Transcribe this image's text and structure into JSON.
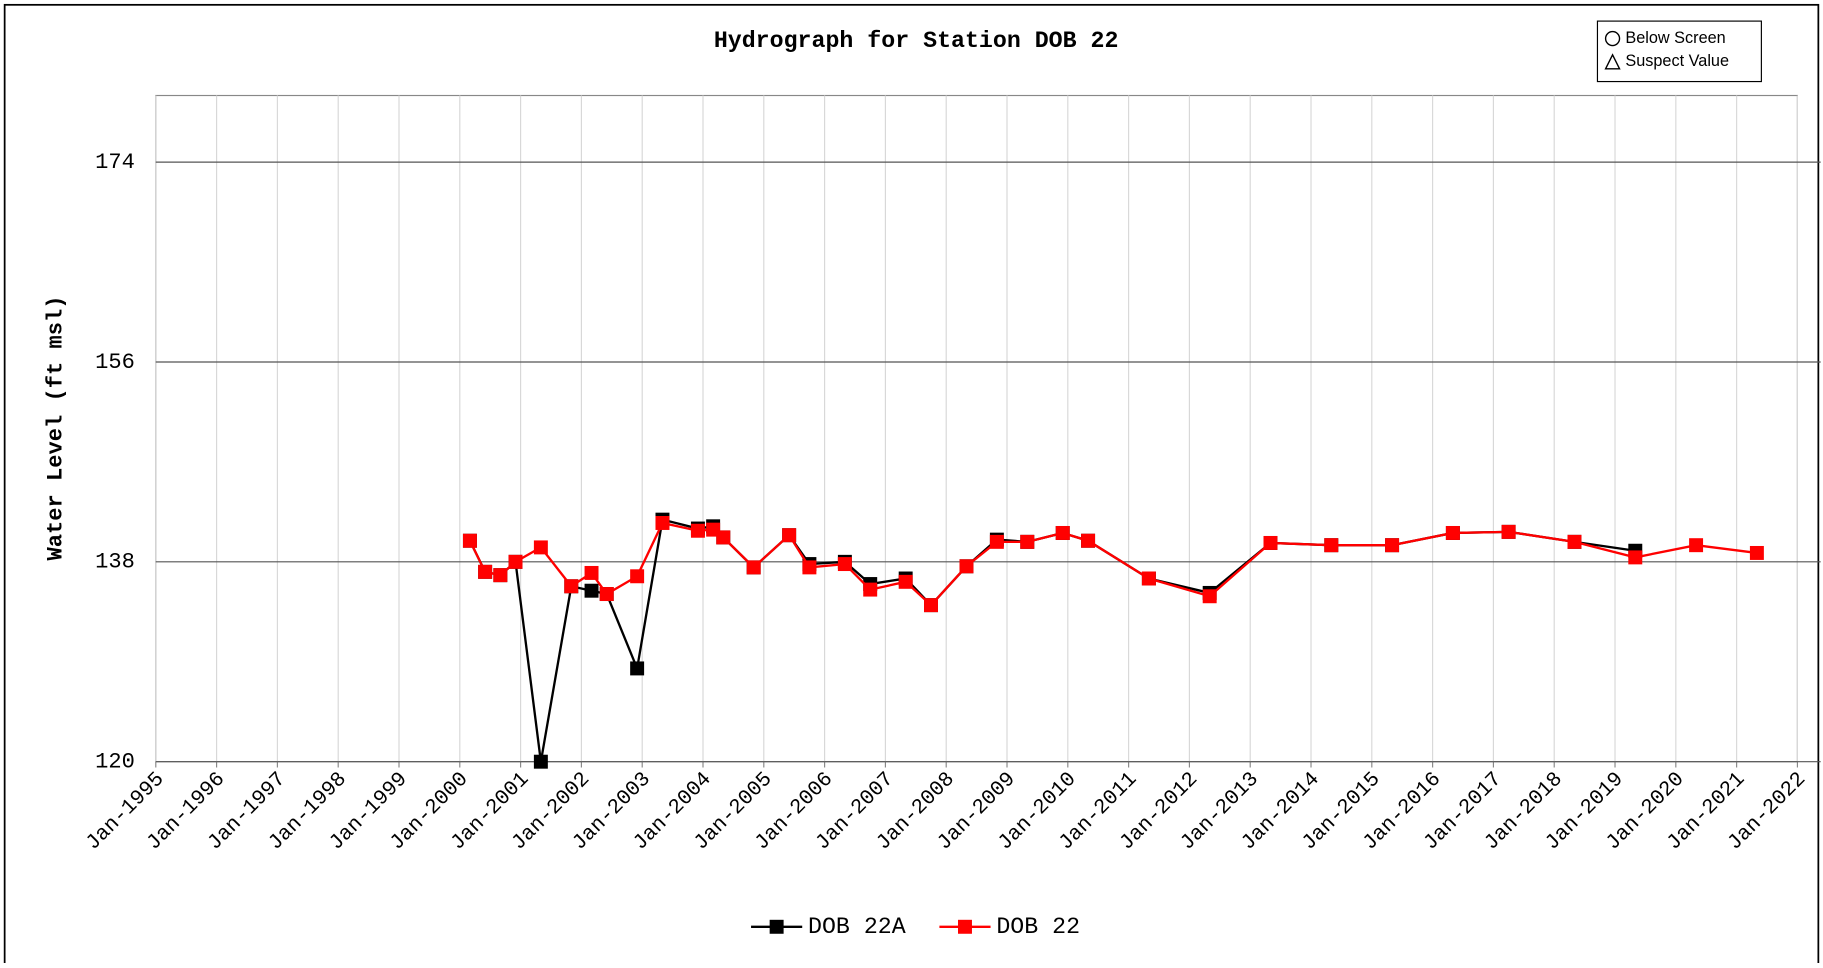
{
  "chart_data": {
    "type": "line",
    "title": "Hydrograph for Station DOB 22",
    "y_label": "Water Level (ft msl)",
    "annotations": [
      "Below Screen",
      "Suspect Value"
    ],
    "xlim": [
      "1995-01",
      "2022-01"
    ],
    "xticks": [
      {
        "value": "1995-01",
        "label": "Jan-1995"
      },
      {
        "value": "1996-01",
        "label": "Jan-1996"
      },
      {
        "value": "1997-01",
        "label": "Jan-1997"
      },
      {
        "value": "1998-01",
        "label": "Jan-1998"
      },
      {
        "value": "1999-01",
        "label": "Jan-1999"
      },
      {
        "value": "2000-01",
        "label": "Jan-2000"
      },
      {
        "value": "2001-01",
        "label": "Jan-2001"
      },
      {
        "value": "2002-01",
        "label": "Jan-2002"
      },
      {
        "value": "2003-01",
        "label": "Jan-2003"
      },
      {
        "value": "2004-01",
        "label": "Jan-2004"
      },
      {
        "value": "2005-01",
        "label": "Jan-2005"
      },
      {
        "value": "2006-01",
        "label": "Jan-2006"
      },
      {
        "value": "2007-01",
        "label": "Jan-2007"
      },
      {
        "value": "2008-01",
        "label": "Jan-2008"
      },
      {
        "value": "2009-01",
        "label": "Jan-2009"
      },
      {
        "value": "2010-01",
        "label": "Jan-2010"
      },
      {
        "value": "2011-01",
        "label": "Jan-2011"
      },
      {
        "value": "2012-01",
        "label": "Jan-2012"
      },
      {
        "value": "2013-01",
        "label": "Jan-2013"
      },
      {
        "value": "2014-01",
        "label": "Jan-2014"
      },
      {
        "value": "2015-01",
        "label": "Jan-2015"
      },
      {
        "value": "2016-01",
        "label": "Jan-2016"
      },
      {
        "value": "2017-01",
        "label": "Jan-2017"
      },
      {
        "value": "2018-01",
        "label": "Jan-2018"
      },
      {
        "value": "2019-01",
        "label": "Jan-2019"
      },
      {
        "value": "2020-01",
        "label": "Jan-2020"
      },
      {
        "value": "2021-01",
        "label": "Jan-2021"
      },
      {
        "value": "2022-01",
        "label": "Jan-2022"
      }
    ],
    "ylim": [
      120,
      180
    ],
    "yticks": [
      120,
      138,
      156,
      174
    ],
    "grid": true,
    "series": [
      {
        "name": "DOB 22A",
        "color": "#000000",
        "x": [
          "2000-03",
          "2000-06",
          "2000-09",
          "2000-12",
          "2001-05",
          "2001-11",
          "2002-03",
          "2002-06",
          "2002-12",
          "2003-05",
          "2003-12",
          "2004-03",
          "2004-05",
          "2004-11",
          "2005-06",
          "2005-10",
          "2006-05",
          "2006-10",
          "2007-05",
          "2007-10",
          "2008-05",
          "2008-11",
          "2009-05",
          "2009-12",
          "2010-05",
          "2011-05",
          "2012-05",
          "2013-05",
          "2014-05",
          "2015-05",
          "2016-05",
          "2017-04",
          "2018-05",
          "2019-05"
        ],
        "values": [
          139.9,
          137.1,
          136.8,
          138.0,
          120,
          135.8,
          135.4,
          135.1,
          128.4,
          141.8,
          141.0,
          141.2,
          140.2,
          137.5,
          140.4,
          137.8,
          138.0,
          136.0,
          136.5,
          134.1,
          137.6,
          140.0,
          139.8,
          140.6,
          139.9,
          136.5,
          135.2,
          139.7,
          139.5,
          139.5,
          140.6,
          140.7,
          139.8,
          139.0
        ]
      },
      {
        "name": "DOB 22",
        "color": "#ff0000",
        "x": [
          "2000-03",
          "2000-06",
          "2000-09",
          "2000-12",
          "2001-05",
          "2001-11",
          "2002-03",
          "2002-06",
          "2002-12",
          "2003-05",
          "2003-12",
          "2004-03",
          "2004-05",
          "2004-11",
          "2005-06",
          "2005-10",
          "2006-05",
          "2006-10",
          "2007-05",
          "2007-10",
          "2008-05",
          "2008-11",
          "2009-05",
          "2009-12",
          "2010-05",
          "2011-05",
          "2012-05",
          "2013-05",
          "2014-05",
          "2015-05",
          "2016-05",
          "2017-04",
          "2018-05",
          "2019-05",
          "2020-05",
          "2021-05"
        ],
        "values": [
          139.9,
          137.1,
          136.8,
          138.0,
          139.3,
          135.8,
          137.0,
          135.1,
          136.7,
          141.5,
          140.8,
          140.9,
          140.2,
          137.5,
          140.4,
          137.5,
          137.8,
          135.5,
          136.2,
          134.1,
          137.6,
          139.8,
          139.8,
          140.6,
          139.9,
          136.5,
          134.9,
          139.7,
          139.5,
          139.5,
          140.6,
          140.7,
          139.8,
          138.4,
          139.5,
          138.8
        ]
      }
    ]
  }
}
